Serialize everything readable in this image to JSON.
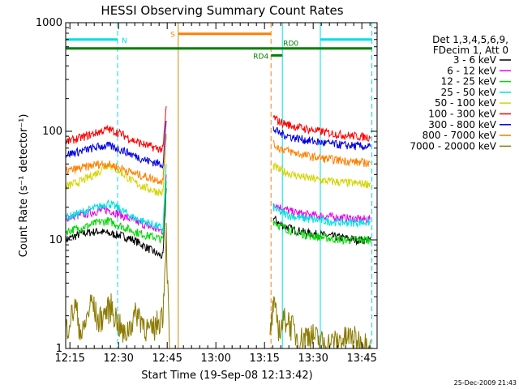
{
  "chart_data": {
    "type": "line",
    "title": "HESSI Observing Summary Count Rates",
    "xlabel": "Start Time (19-Sep-08 12:13:42)",
    "ylabel": "Count Rate (s⁻¹ detector⁻¹)",
    "x_unit": "minutes since 12:13:42",
    "xlim": [
      0,
      96
    ],
    "ylim": [
      1,
      1000
    ],
    "yscale": "log",
    "x_tick_values": [
      1.3,
      16.3,
      31.3,
      46.3,
      61.3,
      76.3,
      91.3
    ],
    "x_tick_labels": [
      "12:15",
      "12:30",
      "12:45",
      "13:00",
      "13:15",
      "13:30",
      "13:45"
    ],
    "y_tick_values": [
      1,
      10,
      100,
      1000
    ],
    "y_tick_labels": [
      "1",
      "10",
      "100",
      "1000"
    ],
    "grid": false,
    "legend_position": "right",
    "legend_header": [
      "Det 1,3,4,5,6,9,",
      "FDecim 1, Att 0"
    ],
    "series": [
      {
        "name": "3 - 6 keV",
        "color": "#000000",
        "segments": [
          {
            "x": [
              0,
              5,
              10,
              13,
              17,
              21,
              25,
              28,
              30,
              31
            ],
            "y": [
              10,
              11.5,
              12,
              11.5,
              11,
              10,
              8.5,
              7.5,
              7,
              30
            ]
          },
          {
            "x": [
              64,
              66,
              70,
              75,
              80,
              85,
              90,
              94
            ],
            "y": [
              16,
              14,
              12.5,
              11.5,
              11,
              10.5,
              10,
              10
            ]
          }
        ]
      },
      {
        "name": "6 - 12 keV",
        "color": "#e800e8",
        "segments": [
          {
            "x": [
              0,
              5,
              10,
              13,
              17,
              21,
              25,
              28,
              30,
              31
            ],
            "y": [
              16,
              17,
              18.5,
              19,
              17,
              15,
              13.5,
              12.5,
              12,
              40
            ]
          },
          {
            "x": [
              64,
              66,
              70,
              75,
              80,
              85,
              90,
              94
            ],
            "y": [
              22,
              20,
              18,
              17,
              16.5,
              16,
              15.5,
              15.5
            ]
          }
        ]
      },
      {
        "name": "12 - 25 keV",
        "color": "#00d800",
        "segments": [
          {
            "x": [
              0,
              5,
              10,
              13,
              17,
              21,
              25,
              28,
              30,
              31
            ],
            "y": [
              12,
              13,
              14.5,
              15,
              13.5,
              12,
              11,
              10.5,
              10,
              35
            ]
          },
          {
            "x": [
              64,
              66,
              70,
              75,
              80,
              85,
              90,
              94
            ],
            "y": [
              15,
              13.5,
              12,
              11,
              10.5,
              10,
              10,
              10
            ]
          }
        ]
      },
      {
        "name": "25 - 50 keV",
        "color": "#00e0e0",
        "segments": [
          {
            "x": [
              0,
              5,
              10,
              13,
              17,
              21,
              25,
              28,
              30,
              31
            ],
            "y": [
              16,
              18,
              20,
              22,
              19,
              16,
              14.5,
              13.5,
              12.5,
              50
            ]
          },
          {
            "x": [
              64,
              66,
              70,
              75,
              80,
              85,
              90,
              94
            ],
            "y": [
              20,
              18,
              16.5,
              15.5,
              15,
              14.5,
              14.5,
              14.5
            ]
          }
        ]
      },
      {
        "name": "50 - 100 keV",
        "color": "#d4d400",
        "segments": [
          {
            "x": [
              0,
              5,
              10,
              13,
              17,
              21,
              25,
              28,
              30,
              31
            ],
            "y": [
              31,
              35,
              42,
              50,
              42,
              34,
              30,
              28,
              27,
              90
            ]
          },
          {
            "x": [
              64,
              66,
              70,
              75,
              80,
              85,
              90,
              94
            ],
            "y": [
              48,
              44,
              40,
              37,
              35,
              34,
              33,
              33
            ]
          }
        ]
      },
      {
        "name": "100 - 300 keV",
        "color": "#ff0000",
        "segments": [
          {
            "x": [
              0,
              5,
              10,
              13,
              17,
              21,
              25,
              28,
              30,
              31
            ],
            "y": [
              80,
              88,
              98,
              105,
              95,
              82,
              74,
              70,
              68,
              170
            ]
          },
          {
            "x": [
              64,
              66,
              70,
              75,
              80,
              85,
              90,
              94
            ],
            "y": [
              135,
              122,
              112,
              104,
              98,
              93,
              90,
              88
            ]
          }
        ]
      },
      {
        "name": "300 - 800 keV",
        "color": "#0000e0",
        "segments": [
          {
            "x": [
              0,
              5,
              10,
              13,
              17,
              21,
              25,
              28,
              30,
              31
            ],
            "y": [
              61,
              66,
              72,
              74,
              68,
              60,
              54,
              51,
              50,
              125
            ]
          },
          {
            "x": [
              64,
              66,
              70,
              75,
              80,
              85,
              90,
              94
            ],
            "y": [
              105,
              96,
              88,
              82,
              78,
              75,
              73,
              72
            ]
          }
        ]
      },
      {
        "name": "800 - 7000 keV",
        "color": "#ff8000",
        "segments": [
          {
            "x": [
              0,
              5,
              10,
              13,
              17,
              21,
              25,
              28,
              30,
              31
            ],
            "y": [
              43,
              46,
              50,
              50,
              46,
              41,
              38,
              36,
              35,
              95
            ]
          },
          {
            "x": [
              64,
              66,
              70,
              75,
              80,
              85,
              90,
              94
            ],
            "y": [
              76,
              70,
              64,
              59,
              56,
              54,
              52,
              51
            ]
          }
        ]
      },
      {
        "name": "7000 - 20000 keV",
        "color": "#8b7a00",
        "segments": [
          {
            "x": [
              0,
              3,
              5,
              8,
              10,
              14,
              18,
              22,
              26,
              28.5,
              30,
              31,
              32
            ],
            "y": [
              1.5,
              2.5,
              1.3,
              2.8,
              1.8,
              2.5,
              1.3,
              2.2,
              1.4,
              1.8,
              2.2,
              12,
              1
            ]
          },
          {
            "x": [
              63,
              64,
              66,
              68,
              72,
              75,
              80,
              85,
              88,
              92,
              94
            ],
            "y": [
              1.3,
              2.5,
              1.5,
              2.0,
              1.2,
              1.4,
              1.1,
              1.2,
              1.3,
              1.1,
              1.2
            ]
          }
        ]
      }
    ],
    "annotations": {
      "vertical_lines": [
        {
          "x": 0,
          "color": "#00e0e0",
          "style": "solid"
        },
        {
          "x": 16,
          "color": "#00e0e0",
          "style": "dashed"
        },
        {
          "x": 34.7,
          "color": "#c89000",
          "style": "solid"
        },
        {
          "x": 63.3,
          "color": "#ff8000",
          "style": "dashed"
        },
        {
          "x": 66.8,
          "color": "#00e0e0",
          "style": "solid"
        },
        {
          "x": 78.5,
          "color": "#00e0e0",
          "style": "solid"
        },
        {
          "x": 94.4,
          "color": "#00e0e0",
          "style": "dashed"
        }
      ],
      "horizontal_bars": [
        {
          "label": "N",
          "y": 700,
          "color": "#00e0e0",
          "segments": [
            [
              0,
              16
            ],
            [
              78.5,
              94.4
            ]
          ]
        },
        {
          "label": "S",
          "y": 790,
          "color": "#ff8000",
          "segments": [
            [
              34.7,
              63.3
            ]
          ]
        },
        {
          "label": "RD0",
          "y": 580,
          "color": "#008000",
          "segments": [
            [
              0,
              94.4
            ]
          ]
        },
        {
          "label": "RD4",
          "y": 500,
          "color": "#008000",
          "segments": [
            [
              63.3,
              66.8
            ]
          ]
        }
      ]
    }
  },
  "footer": {
    "timestamp": "25-Dec-2009 21:43"
  }
}
